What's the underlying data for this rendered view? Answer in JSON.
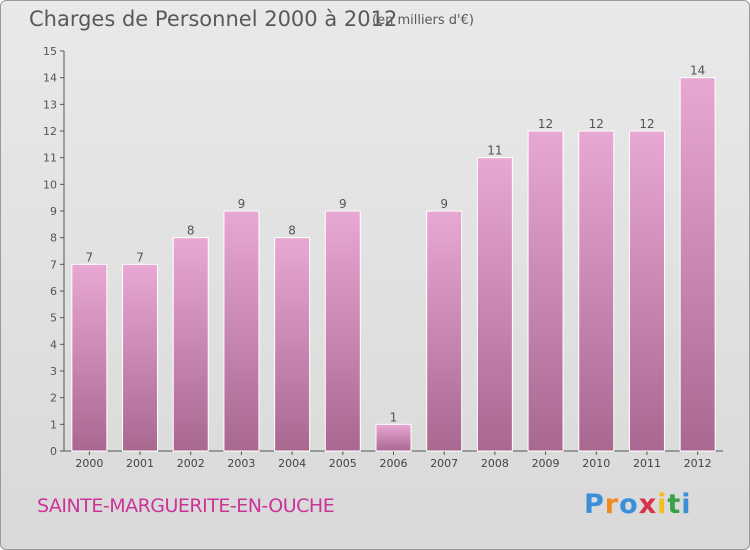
{
  "header": {
    "title": "Charges de Personnel 2000 à 2012",
    "subtitle": "(en milliers d'€)"
  },
  "footer": {
    "town": "SAINTE-MARGUERITE-EN-OUCHE",
    "logo_letters": [
      "P",
      "r",
      "o",
      "x",
      "i",
      "t",
      "i"
    ],
    "logo_colors": [
      "#3a8fd8",
      "#f08a1c",
      "#3a8fd8",
      "#d8324a",
      "#f0c020",
      "#3aa048",
      "#3a8fd8"
    ]
  },
  "chart_data": {
    "type": "bar",
    "title": "Charges de Personnel 2000 à 2012",
    "subtitle": "(en milliers d'€)",
    "categories": [
      "2000",
      "2001",
      "2002",
      "2003",
      "2004",
      "2005",
      "2006",
      "2007",
      "2008",
      "2009",
      "2010",
      "2011",
      "2012"
    ],
    "values": [
      7,
      7,
      8,
      9,
      8,
      9,
      1,
      9,
      11,
      12,
      12,
      12,
      14
    ],
    "ylim": [
      0,
      15
    ],
    "yticks": [
      0,
      1,
      2,
      3,
      4,
      5,
      6,
      7,
      8,
      9,
      10,
      11,
      12,
      13,
      14,
      15
    ],
    "grid": false,
    "bar_color_top": "#e8a8d4",
    "bar_color_bottom": "#a86890"
  }
}
